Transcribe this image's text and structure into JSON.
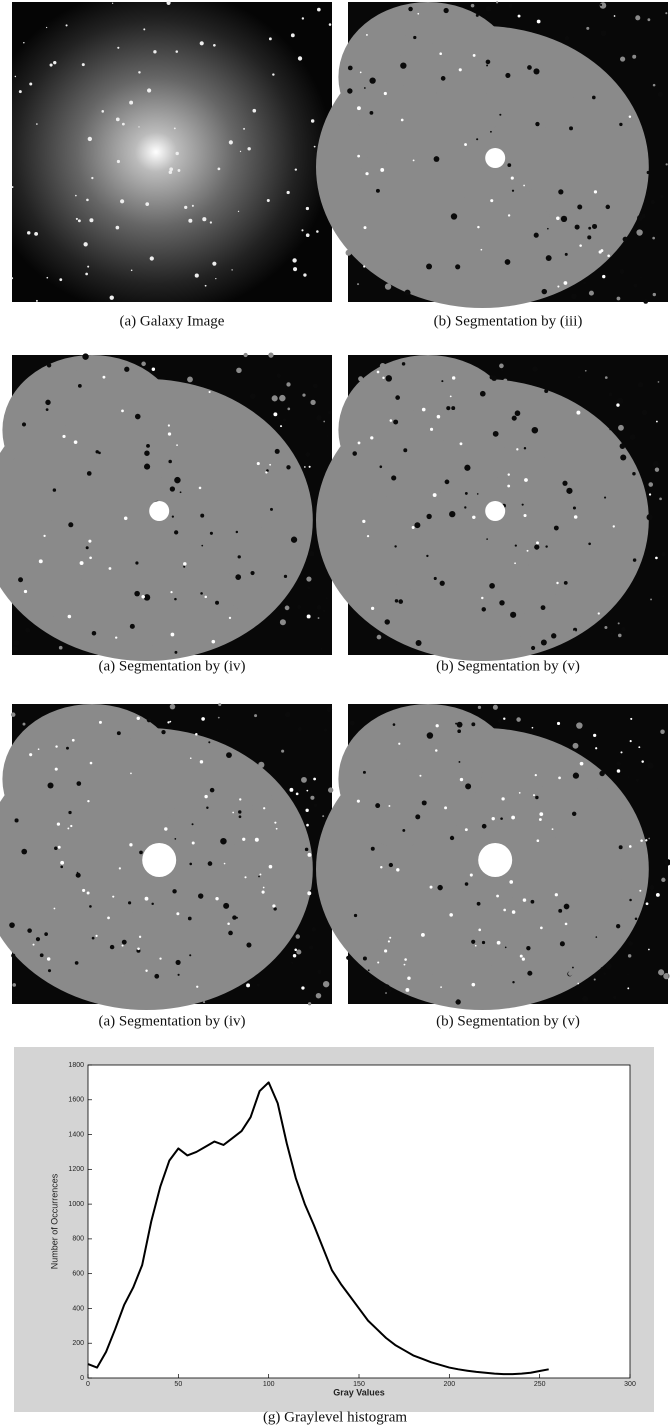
{
  "figure": {
    "panels": [
      {
        "caption": "(a) Galaxy Image",
        "kind": "galaxy"
      },
      {
        "caption": "(b) Segmentation by (iii)",
        "kind": "segmentation"
      },
      {
        "caption": "(a) Segmentation by (iv)",
        "kind": "segmentation"
      },
      {
        "caption": "(b) Segmentation by (v)",
        "kind": "segmentation"
      },
      {
        "caption": "(a) Segmentation by (iv)",
        "kind": "segmentation"
      },
      {
        "caption": "(b) Segmentation by (v)",
        "kind": "segmentation"
      }
    ]
  },
  "chart_data": {
    "type": "line",
    "caption": "(g) Graylevel histogram",
    "x_label": "Gray Values",
    "y_label": "Number of Occurrences",
    "color": "#000000",
    "x": [
      0,
      5,
      10,
      15,
      20,
      25,
      30,
      35,
      40,
      45,
      50,
      55,
      60,
      65,
      70,
      75,
      80,
      85,
      90,
      95,
      100,
      105,
      110,
      115,
      120,
      125,
      130,
      135,
      140,
      145,
      150,
      155,
      160,
      165,
      170,
      175,
      180,
      185,
      190,
      195,
      200,
      205,
      210,
      215,
      220,
      225,
      230,
      235,
      240,
      245,
      250,
      255
    ],
    "values": [
      80,
      60,
      150,
      280,
      420,
      520,
      650,
      900,
      1100,
      1250,
      1320,
      1280,
      1300,
      1330,
      1360,
      1340,
      1380,
      1420,
      1500,
      1650,
      1700,
      1580,
      1350,
      1150,
      1000,
      880,
      750,
      620,
      540,
      470,
      400,
      330,
      280,
      230,
      190,
      160,
      130,
      110,
      90,
      75,
      60,
      50,
      42,
      35,
      30,
      25,
      22,
      22,
      25,
      30,
      40,
      50
    ],
    "xlim": [
      0,
      300
    ],
    "xticks": [
      0,
      50,
      100,
      150,
      200,
      250,
      300
    ],
    "ylim": [
      0,
      1800
    ],
    "yticks": [
      0,
      200,
      400,
      600,
      800,
      1000,
      1200,
      1400,
      1600,
      1800
    ]
  }
}
